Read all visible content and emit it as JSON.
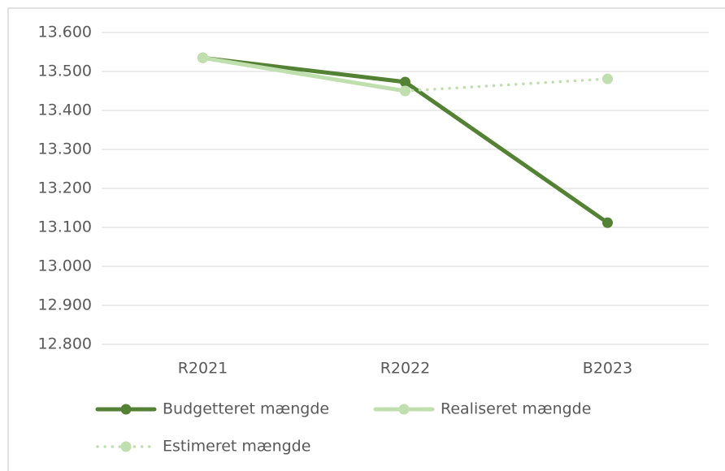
{
  "chart_data": {
    "type": "line",
    "categories": [
      "R2021",
      "R2022",
      "B2023"
    ],
    "series": [
      {
        "name": "Budgetteret mængde",
        "color": "#548235",
        "style": "solid",
        "values": [
          13535,
          13473,
          13112
        ]
      },
      {
        "name": "Realiseret mængde",
        "color": "#c0dfae",
        "style": "solid",
        "values": [
          13535,
          13450,
          null
        ]
      },
      {
        "name": "Estimeret mængde",
        "color": "#c0dfae",
        "style": "dotted",
        "values": [
          null,
          13450,
          13481
        ]
      }
    ],
    "ylim": [
      12800,
      13600
    ],
    "yticks": [
      {
        "value": 12800,
        "label": "12.800"
      },
      {
        "value": 12900,
        "label": "12.900"
      },
      {
        "value": 13000,
        "label": "13.000"
      },
      {
        "value": 13100,
        "label": "13.100"
      },
      {
        "value": 13200,
        "label": "13.200"
      },
      {
        "value": 13300,
        "label": "13.300"
      },
      {
        "value": 13400,
        "label": "13.400"
      },
      {
        "value": 13500,
        "label": "13.500"
      },
      {
        "value": 13600,
        "label": "13.600"
      }
    ],
    "grid": true,
    "legend": "bottom"
  }
}
